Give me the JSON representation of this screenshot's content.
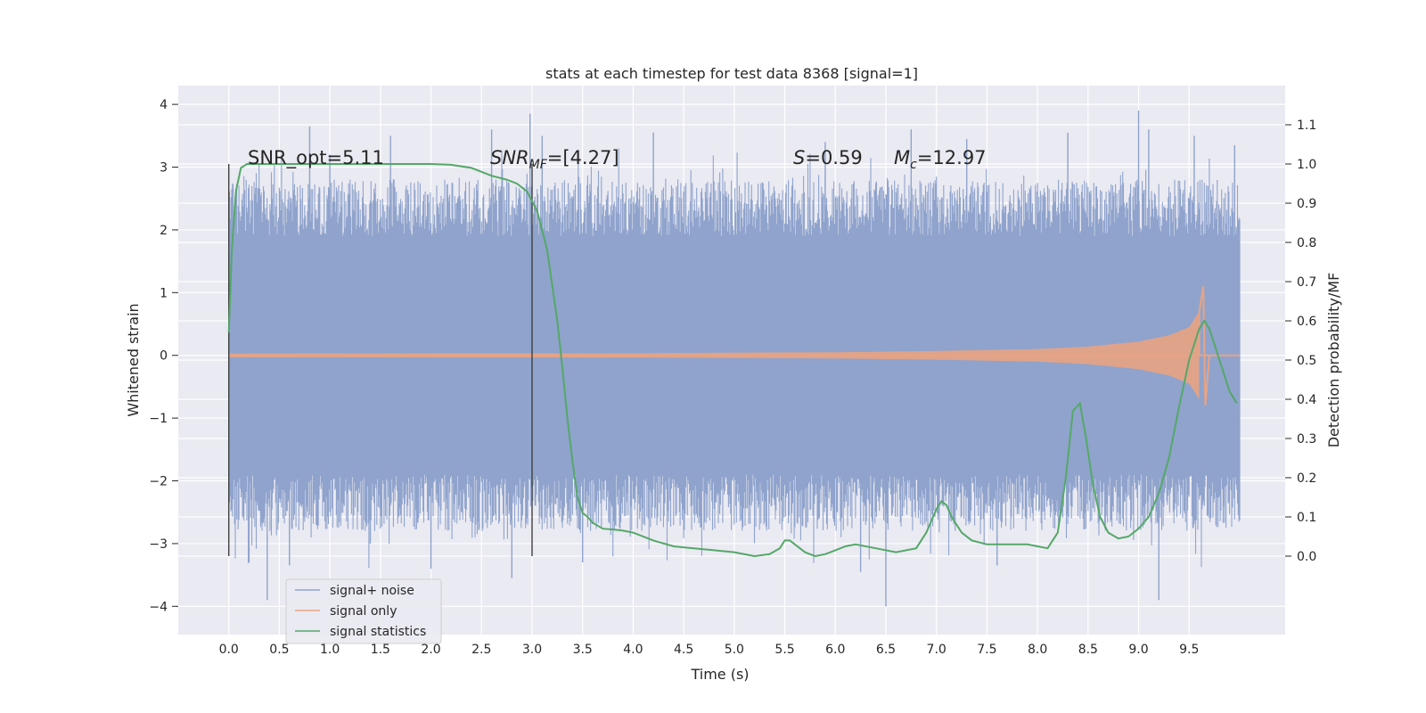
{
  "chart_data": {
    "type": "line",
    "title": "stats at each timestep for test data 8368 [signal=1]",
    "xlabel": "Time (s)",
    "ylabel": "Whitened strain",
    "ylabel_right": "Detection probability/MF",
    "xlim": [
      -0.5,
      10.45
    ],
    "ylim": [
      -4.45,
      4.3
    ],
    "ylim_right": [
      -0.2,
      1.2
    ],
    "grid": true,
    "legend_position": "bottom-left",
    "x_ticks": [
      "0.0",
      "0.5",
      "1.0",
      "1.5",
      "2.0",
      "2.5",
      "3.0",
      "3.5",
      "4.0",
      "4.5",
      "5.0",
      "5.5",
      "6.0",
      "6.5",
      "7.0",
      "7.5",
      "8.0",
      "8.5",
      "9.0",
      "9.5"
    ],
    "y_ticks": [
      "4",
      "3",
      "2",
      "1",
      "0",
      "−1",
      "−2",
      "−3",
      "−4"
    ],
    "y_ticks_right": [
      "1.1",
      "1.0",
      "0.9",
      "0.8",
      "0.7",
      "0.6",
      "0.5",
      "0.4",
      "0.3",
      "0.2",
      "0.1",
      "0.0"
    ],
    "vlines": [
      0.0,
      3.0
    ],
    "annotations": {
      "snr_opt": "SNR_opt=5.11",
      "snr_mf_sym": "SNR",
      "snr_mf_sub": "MF",
      "snr_mf_val": "=[4.27]",
      "s_sym": "S",
      "s_val": "=0.59",
      "mc_sym": "M",
      "mc_sub": "c",
      "mc_val": "=12.97"
    },
    "series": [
      {
        "name": "signal+ noise",
        "color": "#8fa3cc",
        "description": "whitened strain, noisy, roughly within -3 to 3.9",
        "envelope_x": [
          0.0,
          10.0
        ],
        "peaks": [
          [
            0.8,
            3.65
          ],
          [
            1.0,
            3.2
          ],
          [
            1.6,
            3.5
          ],
          [
            2.6,
            3.6
          ],
          [
            2.98,
            3.85
          ],
          [
            3.1,
            3.5
          ],
          [
            4.2,
            3.55
          ],
          [
            5.9,
            3.4
          ],
          [
            6.75,
            3.6
          ],
          [
            7.3,
            3.45
          ],
          [
            8.3,
            3.55
          ],
          [
            9.0,
            3.9
          ],
          [
            9.1,
            3.6
          ],
          [
            9.55,
            3.5
          ],
          [
            9.95,
            3.35
          ],
          [
            0.6,
            -3.35
          ],
          [
            1.4,
            -3.0
          ],
          [
            2.0,
            -3.4
          ],
          [
            2.8,
            -3.55
          ],
          [
            3.5,
            -3.3
          ],
          [
            6.25,
            -3.45
          ],
          [
            6.5,
            -4.0
          ],
          [
            7.6,
            -3.35
          ],
          [
            9.2,
            -3.9
          ],
          [
            0.2,
            -3.3
          ],
          [
            0.38,
            -3.9
          ]
        ]
      },
      {
        "name": "signal only",
        "color": "#e8a383",
        "description": "chirp growing toward merger near 9.65 s",
        "envelope": [
          [
            0.0,
            0.03
          ],
          [
            4.0,
            0.035
          ],
          [
            6.0,
            0.05
          ],
          [
            7.0,
            0.07
          ],
          [
            8.0,
            0.1
          ],
          [
            8.5,
            0.14
          ],
          [
            9.0,
            0.22
          ],
          [
            9.3,
            0.32
          ],
          [
            9.5,
            0.45
          ],
          [
            9.6,
            0.7
          ],
          [
            9.64,
            1.1
          ],
          [
            9.66,
            -0.8
          ],
          [
            9.7,
            0.0
          ]
        ]
      },
      {
        "name": "signal statistics",
        "color": "#55a868",
        "x": [
          0.0,
          0.03,
          0.07,
          0.12,
          0.18,
          0.25,
          0.4,
          0.6,
          1.0,
          1.5,
          2.0,
          2.2,
          2.4,
          2.6,
          2.75,
          2.85,
          2.95,
          3.05,
          3.15,
          3.25,
          3.3,
          3.35,
          3.4,
          3.45,
          3.5,
          3.55,
          3.6,
          3.7,
          3.8,
          3.9,
          4.0,
          4.2,
          4.4,
          4.6,
          4.8,
          5.0,
          5.2,
          5.35,
          5.45,
          5.5,
          5.55,
          5.6,
          5.7,
          5.8,
          5.9,
          6.0,
          6.1,
          6.2,
          6.4,
          6.6,
          6.8,
          6.9,
          7.0,
          7.05,
          7.1,
          7.15,
          7.25,
          7.35,
          7.5,
          7.7,
          7.9,
          8.0,
          8.1,
          8.2,
          8.28,
          8.35,
          8.42,
          8.48,
          8.55,
          8.62,
          8.7,
          8.8,
          8.9,
          9.0,
          9.1,
          9.2,
          9.3,
          9.4,
          9.5,
          9.6,
          9.65,
          9.7,
          9.8,
          9.9,
          9.97
        ],
        "y": [
          0.57,
          0.78,
          0.93,
          0.99,
          1.0,
          1.0,
          1.0,
          1.0,
          1.0,
          1.0,
          1.0,
          0.998,
          0.99,
          0.97,
          0.96,
          0.95,
          0.93,
          0.88,
          0.78,
          0.6,
          0.48,
          0.35,
          0.24,
          0.15,
          0.11,
          0.1,
          0.085,
          0.07,
          0.068,
          0.065,
          0.06,
          0.04,
          0.025,
          0.02,
          0.015,
          0.01,
          0.0,
          0.005,
          0.02,
          0.04,
          0.04,
          0.03,
          0.01,
          0.0,
          0.005,
          0.015,
          0.025,
          0.03,
          0.02,
          0.01,
          0.02,
          0.06,
          0.12,
          0.14,
          0.13,
          0.1,
          0.06,
          0.04,
          0.03,
          0.03,
          0.03,
          0.025,
          0.02,
          0.06,
          0.2,
          0.37,
          0.39,
          0.3,
          0.18,
          0.1,
          0.06,
          0.045,
          0.05,
          0.07,
          0.1,
          0.16,
          0.25,
          0.38,
          0.5,
          0.58,
          0.6,
          0.58,
          0.5,
          0.42,
          0.39
        ]
      }
    ]
  }
}
